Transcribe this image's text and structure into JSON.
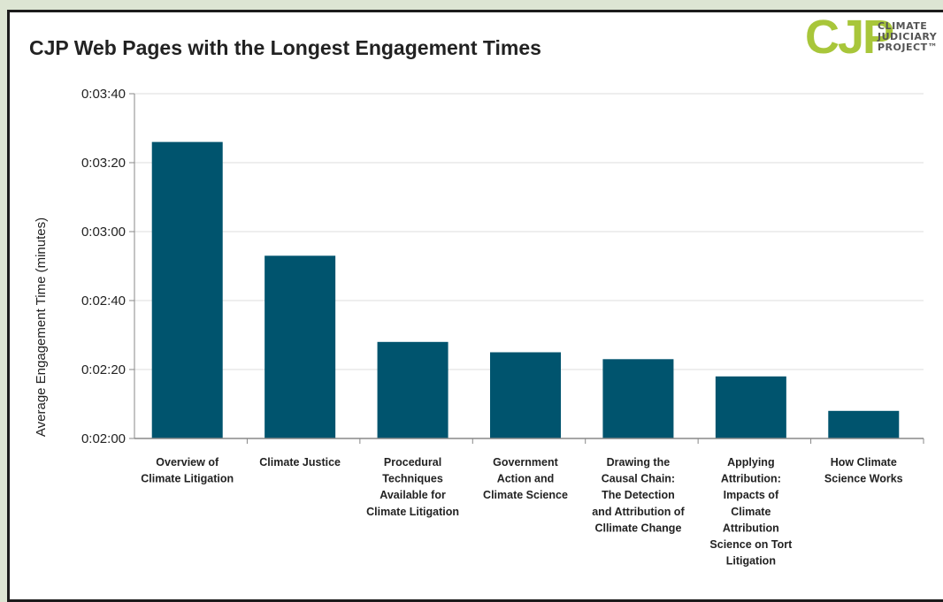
{
  "logo": {
    "mark": "CJP",
    "lines": [
      "CLIMATE",
      "JUDICIARY",
      "PROJECT™"
    ]
  },
  "colors": {
    "bar": "#00546e",
    "grid": "#dcdcdc",
    "axis": "#888888",
    "logo": "#a8c63a"
  },
  "chart_data": {
    "type": "bar",
    "title": "CJP Web Pages with the Longest Engagement Times",
    "xlabel": "",
    "ylabel": "Average Engagement Time (minutes)",
    "ylim_seconds": [
      120,
      220
    ],
    "y_ticks_seconds": [
      120,
      140,
      160,
      180,
      200,
      220
    ],
    "y_tick_labels": [
      "0:02:00",
      "0:02:20",
      "0:02:40",
      "0:03:00",
      "0:03:20",
      "0:03:40"
    ],
    "categories": [
      [
        "Overview of",
        "Climate Litigation"
      ],
      [
        "Climate Justice"
      ],
      [
        "Procedural",
        "Techniques",
        "Available for",
        "Climate Litigation"
      ],
      [
        "Government",
        "Action and",
        "Climate Science"
      ],
      [
        "Drawing the",
        "Causal Chain:",
        "The Detection",
        "and Attribution of",
        "Cllimate Change"
      ],
      [
        "Applying",
        "Attribution:",
        "Impacts of",
        "Climate",
        "Attribution",
        "Science on Tort",
        "Litigation"
      ],
      [
        "How Climate",
        "Science Works"
      ]
    ],
    "values_seconds": [
      206,
      173,
      148,
      145,
      143,
      138,
      128
    ],
    "grid": true,
    "legend": false
  }
}
